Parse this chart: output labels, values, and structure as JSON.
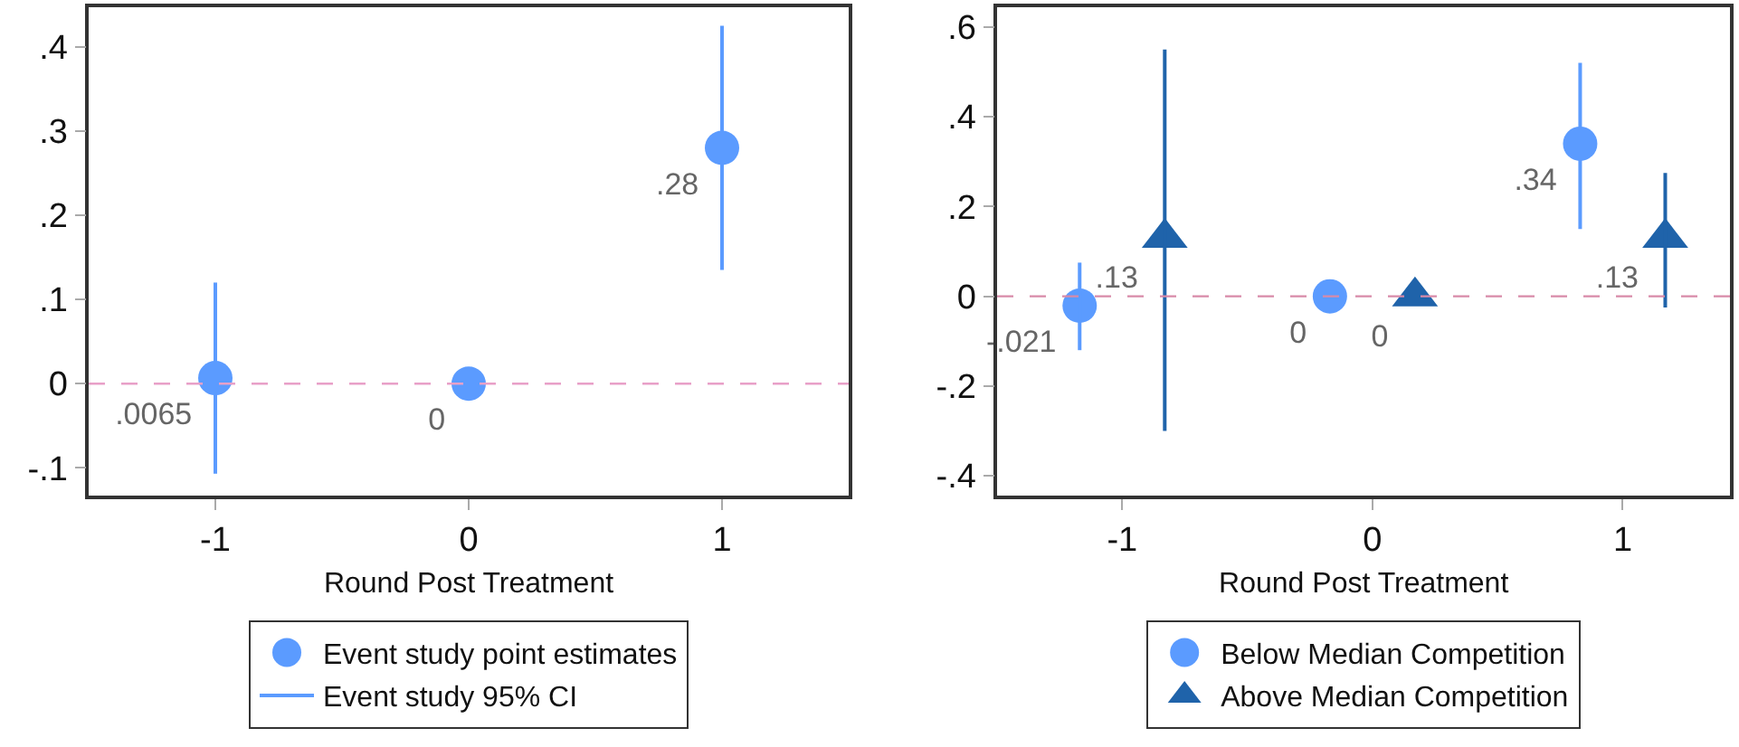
{
  "chart_data": [
    {
      "type": "scatter",
      "xlabel": "Round Post Treatment",
      "xlim": [
        -1.5,
        1.5
      ],
      "xticks": [
        -1,
        0,
        1
      ],
      "ylim": [
        -0.133,
        0.447
      ],
      "yticks": [
        {
          "value": -0.1,
          "label": "-.1"
        },
        0,
        {
          "value": 0.1,
          "label": ".1"
        },
        {
          "value": 0.2,
          "label": ".2"
        },
        {
          "value": 0.3,
          "label": ".3"
        },
        {
          "value": 0.4,
          "label": ".4"
        }
      ],
      "legend": "bottom",
      "ref_lines": [
        {
          "axis": "y",
          "value": 0,
          "color": "#e8a0c8",
          "line_style": "dashed"
        }
      ],
      "series": [
        {
          "name": "Event study point estimates",
          "color": "#5b9bff",
          "marker": "circle",
          "x": [
            -1,
            0,
            1
          ],
          "values": [
            0.0065,
            0,
            0.28
          ],
          "value_labels": [
            ".0065",
            "0",
            ".28"
          ],
          "errors": [
            [
              -0.107,
              0.12
            ],
            null,
            [
              0.135,
              0.425
            ]
          ]
        },
        {
          "name": "Event study 95% CI",
          "type": "line",
          "color": "#5b9bff"
        }
      ]
    },
    {
      "type": "scatter",
      "xlabel": "Round Post Treatment",
      "xlim": [
        -1.5,
        1.43
      ],
      "xticks": [
        -1,
        0,
        1
      ],
      "ylim": [
        -0.444,
        0.644
      ],
      "yticks": [
        {
          "value": -0.4,
          "label": "-.4"
        },
        {
          "value": -0.2,
          "label": "-.2"
        },
        0,
        {
          "value": 0.2,
          "label": ".2"
        },
        {
          "value": 0.4,
          "label": ".4"
        },
        {
          "value": 0.6,
          "label": ".6"
        }
      ],
      "legend": "bottom",
      "ref_lines": [
        {
          "axis": "y",
          "value": 0,
          "color": "#d88aa8",
          "line_style": "dashed"
        }
      ],
      "series": [
        {
          "name": "Below Median Competition",
          "color": "#5b9bff",
          "marker": "circle",
          "x": [
            -1.17,
            -0.17,
            0.83
          ],
          "values": [
            -0.021,
            0,
            0.34
          ],
          "value_labels": [
            "-.021",
            "0",
            ".34"
          ],
          "errors": [
            [
              -0.12,
              0.075
            ],
            null,
            [
              0.15,
              0.52
            ]
          ]
        },
        {
          "name": "Above Median Competition",
          "color": "#1f63aa",
          "marker": "triangle",
          "x": [
            -0.83,
            0.17,
            1.17
          ],
          "values": [
            0.13,
            0,
            0.13
          ],
          "value_labels": [
            ".13",
            "0",
            ".13"
          ],
          "errors": [
            [
              -0.3,
              0.55
            ],
            null,
            [
              -0.025,
              0.275
            ]
          ]
        }
      ]
    }
  ]
}
